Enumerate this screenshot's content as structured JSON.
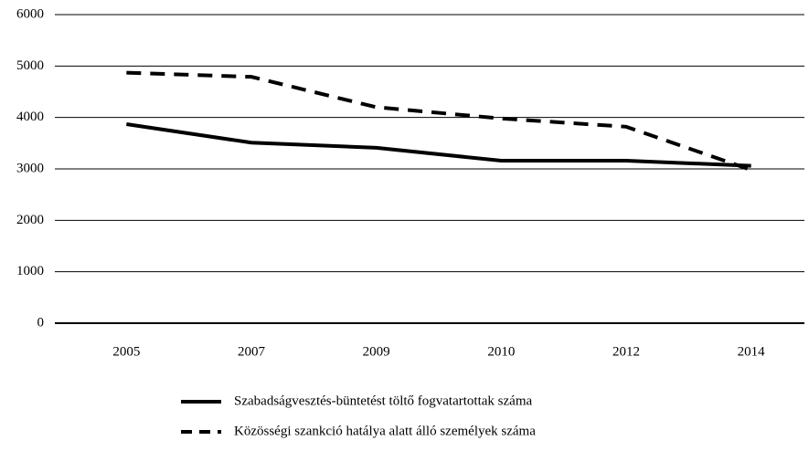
{
  "chart_data": {
    "type": "line",
    "categories": [
      "2005",
      "2007",
      "2009",
      "2010",
      "2012",
      "2014"
    ],
    "series": [
      {
        "name": "Szabadságvesztés-büntetést töltő fogvatartottak száma",
        "color": "#000000",
        "dash": false,
        "values": [
          3870,
          3510,
          3410,
          3160,
          3160,
          3060
        ]
      },
      {
        "name": "Közösségi szankció hatálya alatt álló személyek száma",
        "color": "#000000",
        "dash": true,
        "values": [
          4870,
          4790,
          4200,
          3980,
          3820,
          2980
        ]
      }
    ],
    "ylim": [
      0,
      6000
    ],
    "yticks": [
      0,
      1000,
      2000,
      3000,
      4000,
      5000,
      6000
    ],
    "grid": true,
    "legend": "bottom"
  }
}
